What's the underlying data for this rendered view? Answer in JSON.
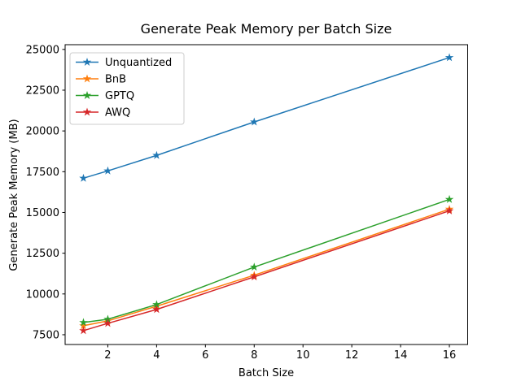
{
  "figure": {
    "title": "Generate Peak Memory per Batch Size",
    "xlabel": "Batch Size",
    "ylabel": "Generate Peak Memory (MB)"
  },
  "chart_data": {
    "type": "line",
    "title": "Generate Peak Memory per Batch Size",
    "xlabel": "Batch Size",
    "ylabel": "Generate Peak Memory (MB)",
    "marker": "star",
    "grid": false,
    "legend_position": "upper-left",
    "x": [
      1,
      2,
      4,
      8,
      16
    ],
    "series": [
      {
        "name": "Unquantized",
        "color": "#1f77b4",
        "values": [
          17100,
          17550,
          18500,
          20550,
          24500
        ]
      },
      {
        "name": "BnB",
        "color": "#ff7f0e",
        "values": [
          8050,
          8350,
          9250,
          11150,
          15200
        ]
      },
      {
        "name": "GPTQ",
        "color": "#2ca02c",
        "values": [
          8250,
          8450,
          9350,
          11650,
          15800
        ]
      },
      {
        "name": "AWQ",
        "color": "#d62728",
        "values": [
          7750,
          8200,
          9050,
          11050,
          15100
        ]
      }
    ],
    "xticks": [
      2,
      4,
      6,
      8,
      10,
      12,
      14,
      16
    ],
    "yticks": [
      7500,
      10000,
      12500,
      15000,
      17500,
      20000,
      22500,
      25000
    ],
    "xlim": [
      0.25,
      16.75
    ],
    "ylim": [
      6900,
      25290
    ],
    "axis_color": "#000000",
    "legend_border_color": "#cccccc",
    "legend_background": "#ffffff"
  }
}
